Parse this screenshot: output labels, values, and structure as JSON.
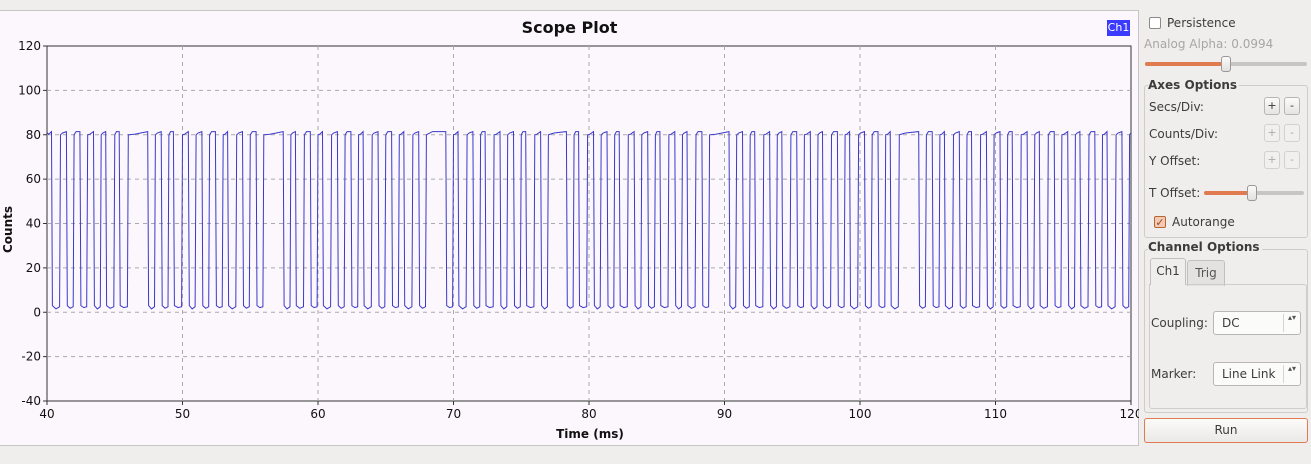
{
  "plot": {
    "title": "Scope Plot",
    "legend": "Ch1",
    "xlabel": "Time (ms)",
    "ylabel": "Counts",
    "x_ticks": [
      "40",
      "50",
      "60",
      "70",
      "80",
      "90",
      "100",
      "110",
      "120"
    ],
    "y_ticks": [
      "120",
      "100",
      "80",
      "60",
      "40",
      "20",
      "0",
      "-20",
      "-40"
    ]
  },
  "chart_data": {
    "type": "line",
    "title": "Scope Plot",
    "xlabel": "Time (ms)",
    "ylabel": "Counts",
    "xlim": [
      40,
      120
    ],
    "ylim": [
      -40,
      120
    ],
    "grid": true,
    "legend_position": "top-right",
    "series": [
      {
        "name": "Ch1",
        "color": "#3a3ac8",
        "high_level": 81,
        "low_level": 2,
        "pulse_widths_ms": [
          0.4,
          0.5,
          0.5,
          0.5,
          0.4,
          0.4,
          1.5,
          0.5,
          0.4,
          0.5,
          0.5,
          0.5,
          0.4,
          0.5,
          0.5,
          1.5,
          0.4,
          0.5,
          0.4,
          0.5,
          0.5,
          0.4,
          0.5,
          0.5,
          0.4,
          0.5,
          1.5,
          0.4,
          0.5,
          0.4,
          0.5,
          0.5,
          0.4,
          0.5,
          1.4,
          0.4,
          0.5,
          0.5,
          0.4,
          0.5,
          0.5,
          0.4,
          0.5,
          0.4,
          0.5,
          1.5,
          0.5,
          0.4,
          0.5,
          0.4,
          0.5,
          0.5,
          0.4,
          0.5,
          0.4,
          0.5,
          0.5,
          0.4,
          1.5,
          0.5,
          0.4,
          0.5,
          0.4,
          0.5,
          0.5,
          0.4,
          0.5,
          0.4,
          0.5,
          0.5,
          0.4,
          0.5,
          0.4,
          0.5,
          0.5,
          0.4,
          0.5,
          0.4,
          0.5,
          0.5,
          0.4,
          0.5,
          0.4,
          0.5,
          0.5
        ],
        "period_ms": 1.0
      }
    ],
    "colors": {
      "background": "#fcf7fc",
      "grid": "#a9a9a9",
      "trace": "#3a3ac8",
      "accent": "#e07a51",
      "legend": "#3b3bff"
    }
  },
  "side": {
    "persistence_label": "Persistence",
    "persistence_checked": false,
    "alpha_label": "Analog Alpha: 0.0994",
    "alpha_value": 0.0994,
    "axes_options_title": "Axes Options",
    "secs_div_label": "Secs/Div:",
    "counts_div_label": "Counts/Div:",
    "y_offset_label": "Y Offset:",
    "t_offset_label": "T Offset:",
    "plus": "+",
    "minus": "-",
    "autorange_label": "Autorange",
    "autorange_checked": true,
    "channel_options_title": "Channel Options",
    "tabs": [
      "Ch1",
      "Trig"
    ],
    "coupling_label": "Coupling:",
    "coupling_value": "DC",
    "marker_label": "Marker:",
    "marker_value": "Line Link",
    "run_label": "Run",
    "check_glyph": "✓",
    "combo_arrows": "▴▾"
  }
}
